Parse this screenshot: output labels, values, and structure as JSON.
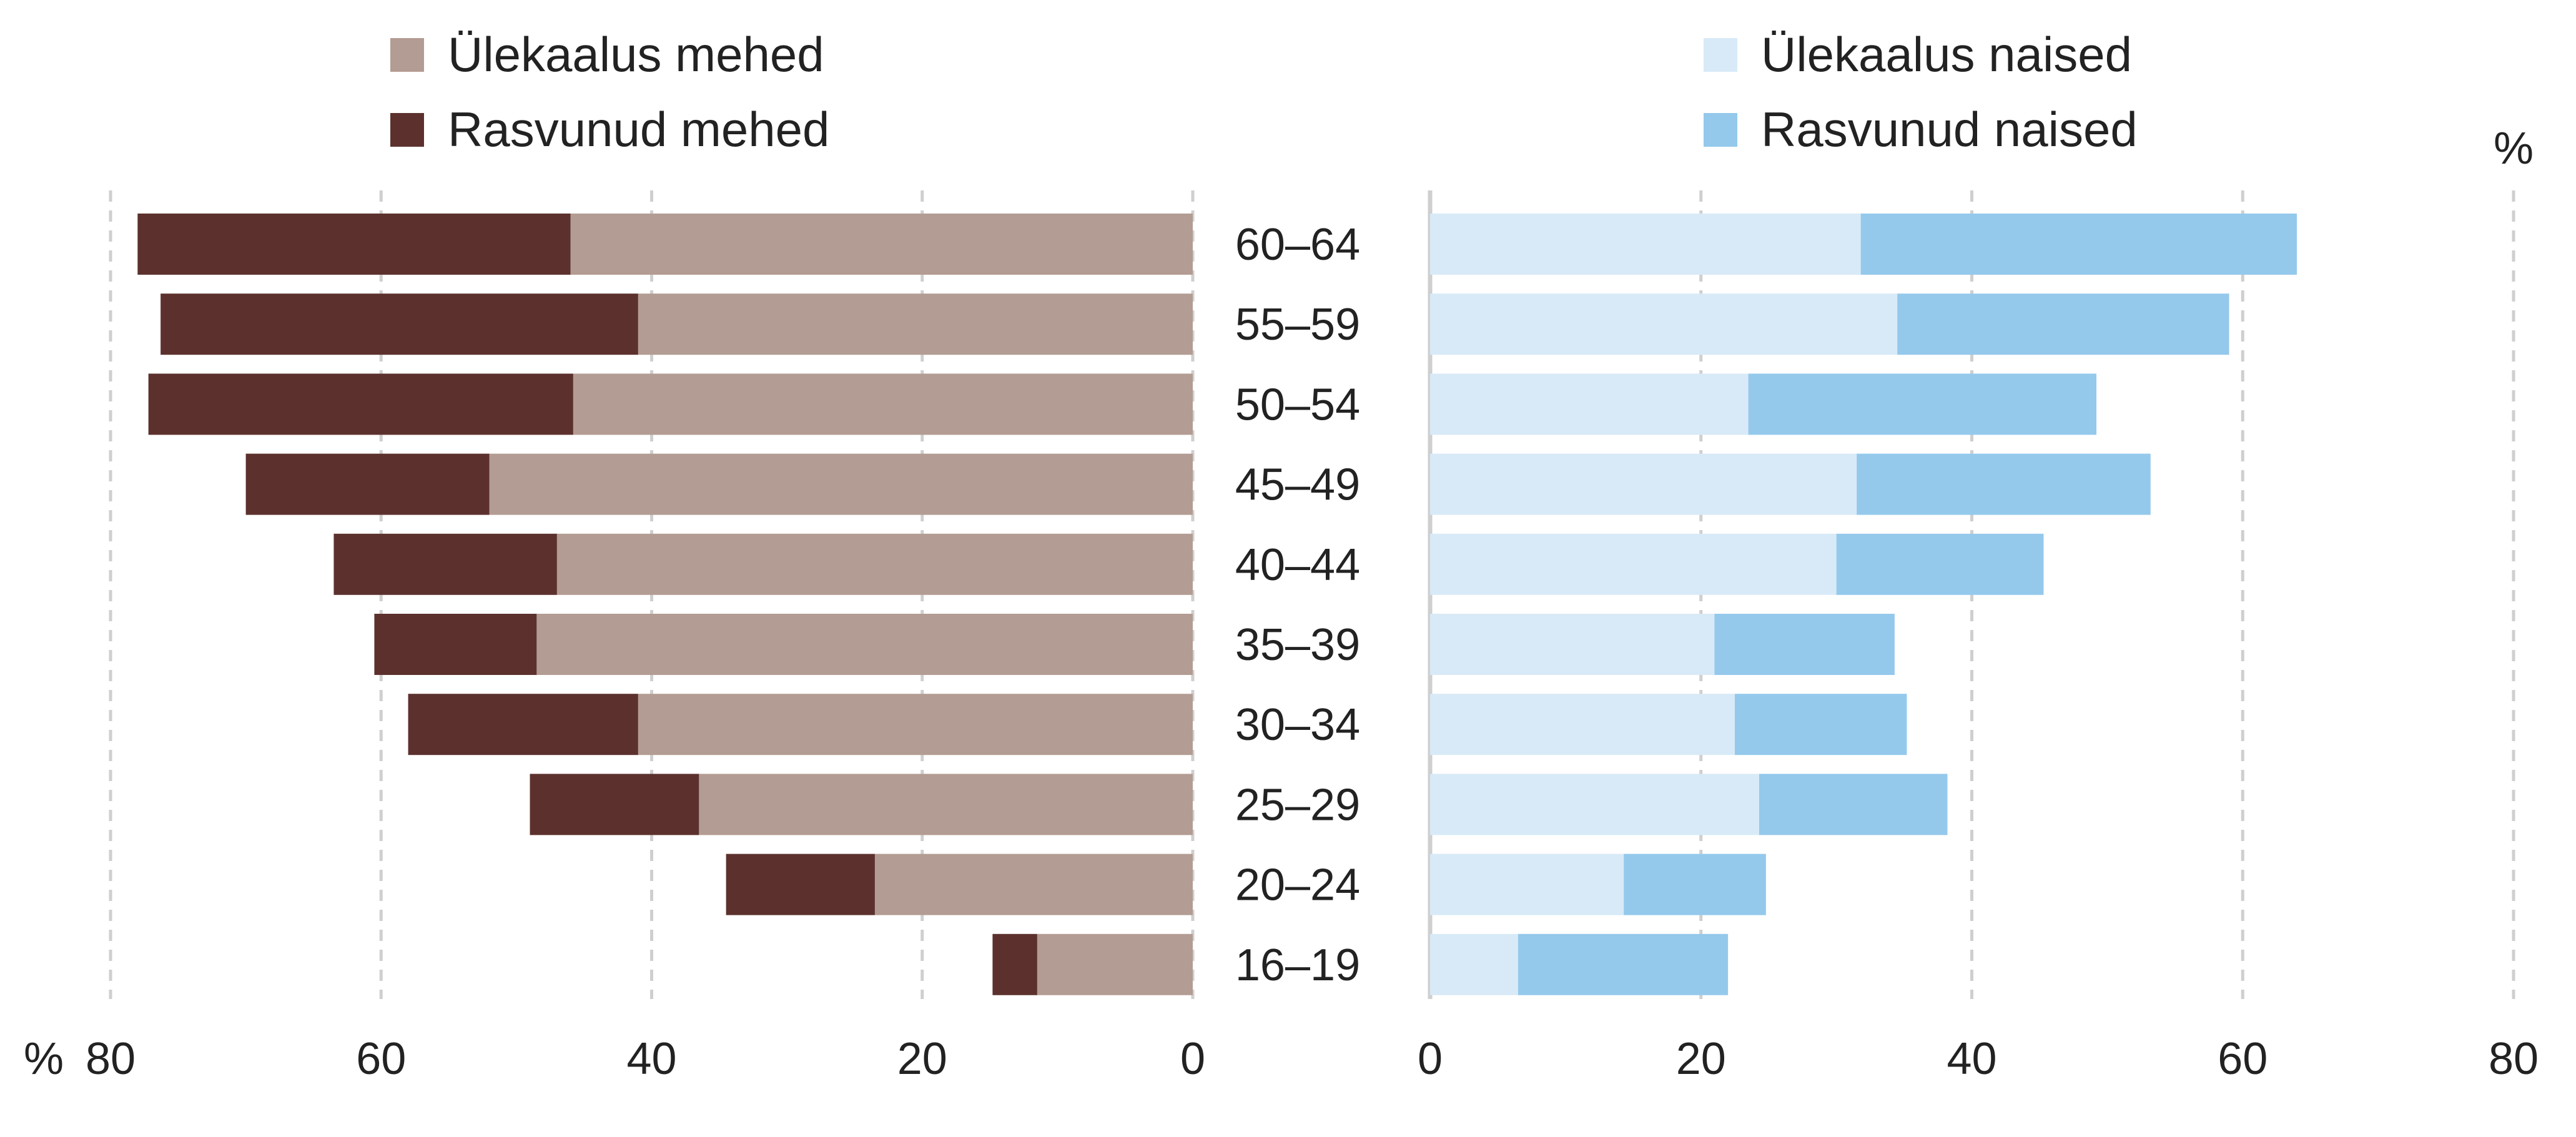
{
  "chart_data": {
    "type": "bar",
    "orientation": "horizontal",
    "layout": "back-to-back population pyramid",
    "unit": "%",
    "categories": [
      "60–64",
      "55–59",
      "50–54",
      "45–49",
      "40–44",
      "35–39",
      "30–34",
      "25–29",
      "20–24",
      "16–19"
    ],
    "left_panel": {
      "xlim": [
        0,
        80
      ],
      "ticks": [
        80,
        60,
        40,
        20,
        0
      ],
      "axis_unit_label": "%",
      "stacked": true,
      "series": [
        {
          "name": "Ülekaalus mehed",
          "color": "#b39c93",
          "values": [
            46.0,
            41.0,
            45.8,
            52.0,
            47.0,
            48.5,
            41.0,
            36.5,
            23.5,
            11.5
          ]
        },
        {
          "name": "Rasvunud mehed",
          "color": "#5c312d",
          "values": [
            32.0,
            35.3,
            31.4,
            18.0,
            16.5,
            12.0,
            17.0,
            12.5,
            11.0,
            3.3
          ]
        }
      ]
    },
    "right_panel": {
      "xlim": [
        0,
        80
      ],
      "ticks": [
        0,
        20,
        40,
        60,
        80
      ],
      "axis_unit_label": "%",
      "stacked": true,
      "series": [
        {
          "name": "Ülekaalus naised",
          "color": "#d8eaf7",
          "values": [
            31.8,
            34.5,
            23.5,
            31.5,
            30.0,
            21.0,
            22.5,
            24.3,
            14.3,
            6.5
          ]
        },
        {
          "name": "Rasvunud naised",
          "color": "#94c9ec",
          "values": [
            32.2,
            24.5,
            25.7,
            21.7,
            15.3,
            13.3,
            12.7,
            13.9,
            10.5,
            15.5
          ]
        }
      ]
    },
    "grid": "vertical dashed",
    "legend_placement": "top"
  }
}
